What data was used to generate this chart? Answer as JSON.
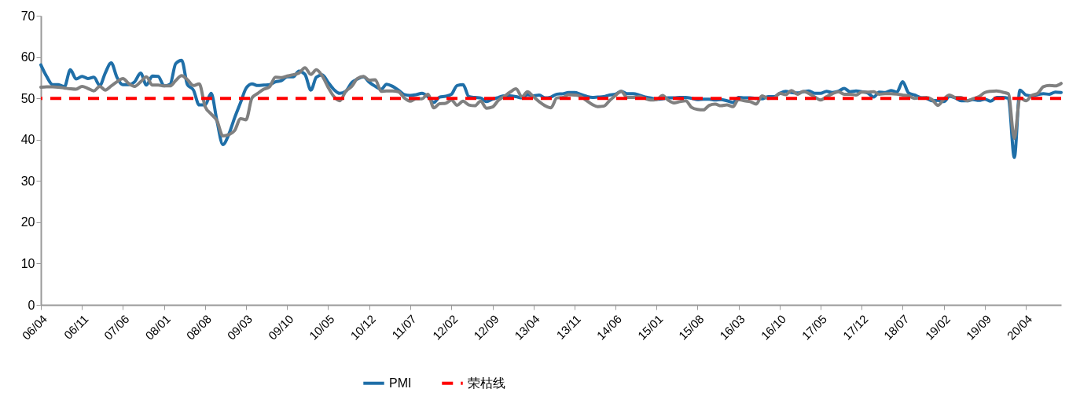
{
  "chart_data": {
    "type": "line",
    "x": [
      "2006-04",
      "2006-05",
      "2006-06",
      "2006-07",
      "2006-08",
      "2006-09",
      "2006-10",
      "2006-11",
      "2006-12",
      "2007-01",
      "2007-02",
      "2007-03",
      "2007-04",
      "2007-05",
      "2007-06",
      "2007-07",
      "2007-08",
      "2007-09",
      "2007-10",
      "2007-11",
      "2007-12",
      "2008-01",
      "2008-02",
      "2008-03",
      "2008-04",
      "2008-05",
      "2008-06",
      "2008-07",
      "2008-08",
      "2008-09",
      "2008-10",
      "2008-11",
      "2008-12",
      "2009-01",
      "2009-02",
      "2009-03",
      "2009-04",
      "2009-05",
      "2009-06",
      "2009-07",
      "2009-08",
      "2009-09",
      "2009-10",
      "2009-11",
      "2009-12",
      "2010-01",
      "2010-02",
      "2010-03",
      "2010-04",
      "2010-05",
      "2010-06",
      "2010-07",
      "2010-08",
      "2010-09",
      "2010-10",
      "2010-11",
      "2010-12",
      "2011-01",
      "2011-02",
      "2011-03",
      "2011-04",
      "2011-05",
      "2011-06",
      "2011-07",
      "2011-08",
      "2011-09",
      "2011-10",
      "2011-11",
      "2011-12",
      "2012-01",
      "2012-02",
      "2012-03",
      "2012-04",
      "2012-05",
      "2012-06",
      "2012-07",
      "2012-08",
      "2012-09",
      "2012-10",
      "2012-11",
      "2012-12",
      "2013-01",
      "2013-02",
      "2013-03",
      "2013-04",
      "2013-05",
      "2013-06",
      "2013-07",
      "2013-08",
      "2013-09",
      "2013-10",
      "2013-11",
      "2013-12",
      "2014-01",
      "2014-02",
      "2014-03",
      "2014-04",
      "2014-05",
      "2014-06",
      "2014-07",
      "2014-08",
      "2014-09",
      "2014-10",
      "2014-11",
      "2014-12",
      "2015-01",
      "2015-02",
      "2015-03",
      "2015-04",
      "2015-05",
      "2015-06",
      "2015-07",
      "2015-08",
      "2015-09",
      "2015-10",
      "2015-11",
      "2015-12",
      "2016-01",
      "2016-02",
      "2016-03",
      "2016-04",
      "2016-05",
      "2016-06",
      "2016-07",
      "2016-08",
      "2016-09",
      "2016-10",
      "2016-11",
      "2016-12",
      "2017-01",
      "2017-02",
      "2017-03",
      "2017-04",
      "2017-05",
      "2017-06",
      "2017-07",
      "2017-08",
      "2017-09",
      "2017-10",
      "2017-11",
      "2017-12",
      "2018-01",
      "2018-02",
      "2018-03",
      "2018-04",
      "2018-05",
      "2018-06",
      "2018-07",
      "2018-08",
      "2018-09",
      "2018-10",
      "2018-11",
      "2018-12",
      "2019-01",
      "2019-02",
      "2019-03",
      "2019-04",
      "2019-05",
      "2019-06",
      "2019-07",
      "2019-08",
      "2019-09",
      "2019-10",
      "2019-11",
      "2019-12",
      "2020-01",
      "2020-02",
      "2020-03",
      "2020-04",
      "2020-05",
      "2020-06",
      "2020-07",
      "2020-08",
      "2020-09",
      "2020-10"
    ],
    "series": [
      {
        "name": "PMI",
        "color": "#1f6fa8",
        "values": [
          58.1,
          55.3,
          53.3,
          53.3,
          52.8,
          56.9,
          54.7,
          55.3,
          54.8,
          55.1,
          53.1,
          56.1,
          58.6,
          55.1,
          53.3,
          53.3,
          54.0,
          56.1,
          53.2,
          55.4,
          55.3,
          53.0,
          53.4,
          58.4,
          59.2,
          53.3,
          52.0,
          48.4,
          48.4,
          51.2,
          44.6,
          38.8,
          41.2,
          45.3,
          49.0,
          52.4,
          53.5,
          53.1,
          53.2,
          53.3,
          54.0,
          54.3,
          55.2,
          55.2,
          56.6,
          55.8,
          52.0,
          55.1,
          55.7,
          53.9,
          52.1,
          51.2,
          51.7,
          53.8,
          54.7,
          55.2,
          53.9,
          52.9,
          52.2,
          53.4,
          52.9,
          52.0,
          50.9,
          50.7,
          50.9,
          51.2,
          50.4,
          49.0,
          50.3,
          50.5,
          51.0,
          53.1,
          53.3,
          50.4,
          50.2,
          50.1,
          49.2,
          49.8,
          50.2,
          50.6,
          50.6,
          50.4,
          50.1,
          50.9,
          50.6,
          50.8,
          50.1,
          50.3,
          51.0,
          51.1,
          51.4,
          51.4,
          51.0,
          50.5,
          50.2,
          50.3,
          50.4,
          50.8,
          51.0,
          51.7,
          51.1,
          51.1,
          50.8,
          50.3,
          50.1,
          49.8,
          49.9,
          50.1,
          50.1,
          50.2,
          50.2,
          50.0,
          49.7,
          49.8,
          49.8,
          49.6,
          49.7,
          49.4,
          49.0,
          50.2,
          50.1,
          50.1,
          50.0,
          49.9,
          50.4,
          50.4,
          51.2,
          51.7,
          51.4,
          51.3,
          51.6,
          51.8,
          51.2,
          51.2,
          51.7,
          51.4,
          51.7,
          52.4,
          51.6,
          51.8,
          51.6,
          51.3,
          50.3,
          51.5,
          51.4,
          51.9,
          51.5,
          54.0,
          51.3,
          50.8,
          50.2,
          50.0,
          49.4,
          49.5,
          49.2,
          50.5,
          50.1,
          49.4,
          49.4,
          49.7,
          49.5,
          49.8,
          49.3,
          50.2,
          50.2,
          50.0,
          35.7,
          52.0,
          50.8,
          50.6,
          50.9,
          51.1,
          51.0,
          51.5,
          51.4
        ]
      },
      {
        "color": "#808080",
        "values": [
          52.7,
          52.8,
          52.8,
          52.7,
          52.5,
          52.3,
          52.2,
          52.9,
          52.4,
          51.8,
          52.9,
          52.0,
          53.0,
          54.0,
          54.8,
          53.6,
          52.9,
          54.0,
          55.2,
          53.2,
          53.2,
          53.0,
          53.0,
          54.3,
          55.5,
          54.5,
          53.1,
          53.5,
          48.0,
          46.2,
          44.6,
          40.9,
          41.2,
          42.2,
          45.1,
          44.8,
          50.1,
          51.2,
          52.2,
          52.8,
          55.1,
          55.0,
          55.4,
          55.7,
          56.1,
          57.4,
          55.8,
          56.9,
          55.4,
          52.7,
          50.4,
          49.4,
          51.7,
          52.9,
          54.8,
          55.3,
          54.4,
          54.5,
          51.7,
          51.8,
          51.8,
          51.6,
          50.1,
          49.3,
          49.9,
          49.9,
          51.0,
          47.7,
          48.7,
          48.8,
          49.6,
          48.3,
          49.3,
          48.4,
          48.2,
          49.3,
          47.6,
          47.9,
          49.5,
          50.5,
          51.5,
          52.3,
          50.4,
          51.6,
          50.4,
          49.2,
          48.2,
          47.7,
          50.1,
          50.2,
          50.9,
          50.8,
          50.5,
          49.5,
          48.5,
          48.0,
          48.1,
          49.4,
          50.7,
          51.7,
          50.2,
          50.2,
          50.4,
          50.0,
          49.6,
          49.7,
          50.7,
          49.6,
          48.9,
          49.2,
          49.4,
          47.8,
          47.3,
          47.2,
          48.3,
          48.6,
          48.2,
          48.4,
          48.0,
          49.7,
          49.4,
          49.2,
          48.6,
          50.6,
          50.0,
          50.1,
          51.2,
          50.9,
          51.9,
          51.0,
          51.7,
          51.2,
          50.3,
          49.6,
          50.4,
          51.1,
          51.6,
          51.0,
          51.0,
          50.8,
          51.5,
          51.5,
          51.6,
          51.0,
          51.1,
          51.1,
          51.0,
          50.8,
          50.6,
          50.0,
          50.1,
          50.2,
          49.7,
          48.3,
          49.9,
          50.8,
          50.2,
          50.2,
          49.4,
          49.9,
          50.4,
          51.4,
          51.7,
          51.8,
          51.5,
          51.1,
          40.3,
          50.1,
          49.4,
          50.7,
          51.2,
          52.8,
          53.1,
          53.0,
          53.6
        ]
      }
    ],
    "ref_lines": [
      {
        "axis": "y",
        "value": 50,
        "label": "荣枯线",
        "color": "#ff0000",
        "line_style": "dashed"
      }
    ],
    "xlim": [
      "2006-04",
      "2020-10"
    ],
    "xticks": [
      {
        "value": "2006-04",
        "label": "06/04"
      },
      {
        "value": "2006-11",
        "label": "06/11"
      },
      {
        "value": "2007-06",
        "label": "07/06"
      },
      {
        "value": "2008-01",
        "label": "08/01"
      },
      {
        "value": "2008-08",
        "label": "08/08"
      },
      {
        "value": "2009-03",
        "label": "09/03"
      },
      {
        "value": "2009-10",
        "label": "09/10"
      },
      {
        "value": "2010-05",
        "label": "10/05"
      },
      {
        "value": "2010-12",
        "label": "10/12"
      },
      {
        "value": "2011-07",
        "label": "11/07"
      },
      {
        "value": "2012-02",
        "label": "12/02"
      },
      {
        "value": "2012-09",
        "label": "12/09"
      },
      {
        "value": "2013-04",
        "label": "13/04"
      },
      {
        "value": "2013-11",
        "label": "13/11"
      },
      {
        "value": "2014-06",
        "label": "14/06"
      },
      {
        "value": "2015-01",
        "label": "15/01"
      },
      {
        "value": "2015-08",
        "label": "15/08"
      },
      {
        "value": "2016-03",
        "label": "16/03"
      },
      {
        "value": "2016-10",
        "label": "16/10"
      },
      {
        "value": "2017-05",
        "label": "17/05"
      },
      {
        "value": "2017-12",
        "label": "17/12"
      },
      {
        "value": "2018-07",
        "label": "18/07"
      },
      {
        "value": "2019-02",
        "label": "19/02"
      },
      {
        "value": "2019-09",
        "label": "19/09"
      },
      {
        "value": "2020-04",
        "label": "20/04"
      }
    ],
    "ylim": [
      0,
      70
    ],
    "yticks": [
      0,
      10,
      20,
      30,
      40,
      50,
      60,
      70
    ],
    "grid": false,
    "legend": "bottom"
  }
}
